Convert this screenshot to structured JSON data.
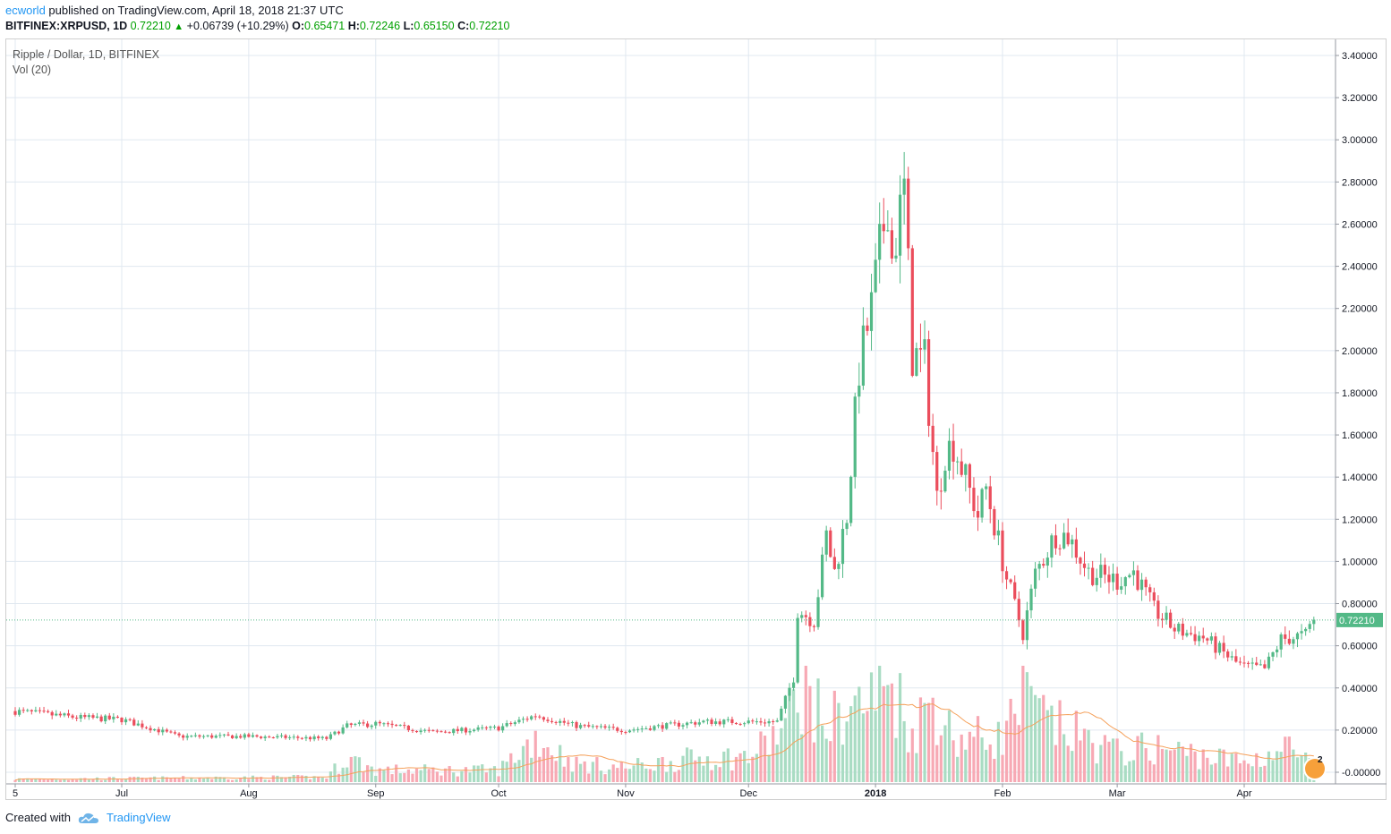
{
  "header": {
    "author": "ecworld",
    "published": "published on TradingView.com, April 18, 2018 21:37 UTC",
    "symbol": "BITFINEX:XRPUSD, 1D",
    "last": "0.72210",
    "change": "+0.06739 (+10.29%)",
    "open_label": "O:",
    "open": "0.65471",
    "high_label": "H:",
    "high": "0.72246",
    "low_label": "L:",
    "low": "0.65150",
    "close_label": "C:",
    "close": "0.72210",
    "up_arrow": "▲"
  },
  "legend": {
    "series": "Ripple / Dollar, 1D, BITFINEX",
    "indicator": "Vol (20)"
  },
  "footer": {
    "created": "Created with",
    "brand": "TradingView"
  },
  "badge": {
    "count": "2"
  },
  "colors": {
    "up": "#53b987",
    "down": "#eb4d5c",
    "vol_up": "#a9dcc3",
    "vol_down": "#f7a9b4",
    "ma": "#f5a05a",
    "price_line": "#53b987",
    "grid": "#e0e8f0"
  },
  "chart_data": {
    "type": "candlestick",
    "title": "Ripple / Dollar, 1D, BITFINEX",
    "ylim": [
      -0.04,
      3.5
    ],
    "y_ticks": [
      "3.40000",
      "3.20000",
      "3.00000",
      "2.80000",
      "2.60000",
      "2.40000",
      "2.20000",
      "2.00000",
      "1.80000",
      "1.60000",
      "1.40000",
      "1.20000",
      "1.00000",
      "0.80000",
      "0.60000",
      "0.40000",
      "0.20000",
      "-0.00000"
    ],
    "y_tick_values": [
      3.4,
      3.2,
      3.0,
      2.8,
      2.6,
      2.4,
      2.2,
      2.0,
      1.8,
      1.6,
      1.4,
      1.2,
      1.0,
      0.8,
      0.6,
      0.4,
      0.2,
      0.0
    ],
    "x_labels": [
      "5",
      "Jul",
      "Aug",
      "Sep",
      "Oct",
      "Nov",
      "Dec",
      "2018",
      "Feb",
      "Mar",
      "Apr"
    ],
    "x_label_dates": [
      "2017-06-05",
      "2017-07-01",
      "2017-08-01",
      "2017-09-01",
      "2017-10-01",
      "2017-11-01",
      "2017-12-01",
      "2018-01-01",
      "2018-02-01",
      "2018-03-01",
      "2018-04-01"
    ],
    "last_price": 0.7221,
    "last_price_label": "0.72210",
    "price_anchors": [
      [
        "2017-06-05",
        0.29
      ],
      [
        "2017-06-20",
        0.26
      ],
      [
        "2017-07-01",
        0.25
      ],
      [
        "2017-07-15",
        0.17
      ],
      [
        "2017-08-01",
        0.17
      ],
      [
        "2017-08-20",
        0.16
      ],
      [
        "2017-08-25",
        0.22
      ],
      [
        "2017-09-01",
        0.23
      ],
      [
        "2017-09-15",
        0.19
      ],
      [
        "2017-10-01",
        0.21
      ],
      [
        "2017-10-10",
        0.27
      ],
      [
        "2017-10-20",
        0.22
      ],
      [
        "2017-11-01",
        0.2
      ],
      [
        "2017-11-20",
        0.24
      ],
      [
        "2017-12-01",
        0.24
      ],
      [
        "2017-12-08",
        0.24
      ],
      [
        "2017-12-12",
        0.45
      ],
      [
        "2017-12-13",
        0.77
      ],
      [
        "2017-12-17",
        0.72
      ],
      [
        "2017-12-20",
        1.12
      ],
      [
        "2017-12-22",
        0.95
      ],
      [
        "2017-12-25",
        1.22
      ],
      [
        "2017-12-28",
        1.92
      ],
      [
        "2017-12-31",
        2.2
      ],
      [
        "2018-01-04",
        2.73
      ],
      [
        "2018-01-05",
        2.44
      ],
      [
        "2018-01-08",
        2.76
      ],
      [
        "2018-01-10",
        1.98
      ],
      [
        "2018-01-13",
        1.95
      ],
      [
        "2018-01-16",
        1.3
      ],
      [
        "2018-01-18",
        1.52
      ],
      [
        "2018-01-20",
        1.56
      ],
      [
        "2018-01-26",
        1.22
      ],
      [
        "2018-01-28",
        1.35
      ],
      [
        "2018-02-02",
        0.92
      ],
      [
        "2018-02-06",
        0.66
      ],
      [
        "2018-02-09",
        0.94
      ],
      [
        "2018-02-14",
        1.13
      ],
      [
        "2018-02-17",
        1.12
      ],
      [
        "2018-02-22",
        0.95
      ],
      [
        "2018-03-01",
        0.91
      ],
      [
        "2018-03-05",
        0.95
      ],
      [
        "2018-03-10",
        0.77
      ],
      [
        "2018-03-15",
        0.68
      ],
      [
        "2018-03-18",
        0.66
      ],
      [
        "2018-03-22",
        0.64
      ],
      [
        "2018-03-30",
        0.52
      ],
      [
        "2018-04-01",
        0.5
      ],
      [
        "2018-04-06",
        0.49
      ],
      [
        "2018-04-10",
        0.63
      ],
      [
        "2018-04-16",
        0.65
      ],
      [
        "2018-04-18",
        0.7221
      ]
    ],
    "volume_scale": "relative (0-1)",
    "volume_anchors": [
      [
        "2017-06-05",
        0.03
      ],
      [
        "2017-08-20",
        0.05
      ],
      [
        "2017-08-25",
        0.25
      ],
      [
        "2017-09-01",
        0.12
      ],
      [
        "2017-10-01",
        0.12
      ],
      [
        "2017-10-10",
        0.45
      ],
      [
        "2017-10-20",
        0.18
      ],
      [
        "2017-11-01",
        0.15
      ],
      [
        "2017-11-20",
        0.25
      ],
      [
        "2017-12-01",
        0.25
      ],
      [
        "2017-12-10",
        0.55
      ],
      [
        "2017-12-14",
        1.0
      ],
      [
        "2017-12-20",
        0.55
      ],
      [
        "2017-12-25",
        0.75
      ],
      [
        "2017-12-30",
        0.8
      ],
      [
        "2018-01-05",
        1.0
      ],
      [
        "2018-01-10",
        0.5
      ],
      [
        "2018-01-15",
        0.85
      ],
      [
        "2018-01-20",
        0.45
      ],
      [
        "2018-02-01",
        0.45
      ],
      [
        "2018-02-06",
        0.85
      ],
      [
        "2018-02-12",
        0.6
      ],
      [
        "2018-03-01",
        0.3
      ],
      [
        "2018-03-10",
        0.35
      ],
      [
        "2018-04-01",
        0.2
      ],
      [
        "2018-04-12",
        0.35
      ],
      [
        "2018-04-18",
        0.15
      ]
    ]
  }
}
